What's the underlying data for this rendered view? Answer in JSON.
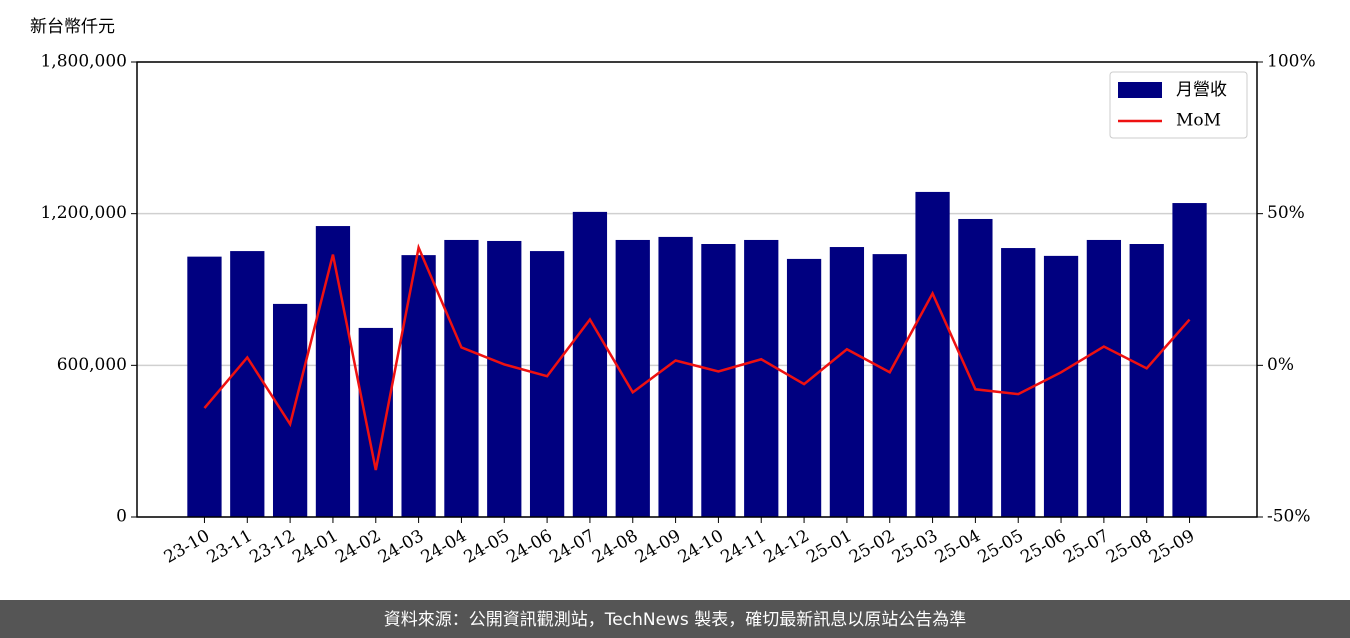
{
  "chart_data": {
    "type": "bar",
    "y_label": "新台幣仟元",
    "categories": [
      "23-10",
      "23-11",
      "23-12",
      "24-01",
      "24-02",
      "24-03",
      "24-04",
      "24-05",
      "24-06",
      "24-07",
      "24-08",
      "24-09",
      "24-10",
      "24-11",
      "24-12",
      "25-01",
      "25-02",
      "25-03",
      "25-04",
      "25-05",
      "25-06",
      "25-07",
      "25-08",
      "25-09"
    ],
    "series": [
      {
        "name": "月營收",
        "color": "#000080",
        "values": [
          1030000,
          1052000,
          843000,
          1151000,
          748000,
          1036000,
          1096000,
          1092000,
          1052000,
          1207000,
          1096000,
          1108000,
          1080000,
          1096000,
          1021000,
          1068000,
          1040000,
          1286000,
          1179000,
          1064000,
          1033000,
          1096000,
          1080000,
          1242000
        ]
      },
      {
        "name": "MoM",
        "color": "#ee1111",
        "type": "line",
        "axis": "y2",
        "values": [
          -14.1,
          2.6,
          -19.4,
          36.5,
          -34.5,
          38.8,
          5.9,
          0.3,
          -3.6,
          15.1,
          -8.9,
          1.6,
          -2.0,
          2.0,
          -6.2,
          5.3,
          -2.3,
          23.7,
          -7.9,
          -9.5,
          -2.3,
          6.2,
          -1.0,
          15.1
        ]
      }
    ],
    "ylim": [
      0,
      1800000
    ],
    "yticks": [
      0,
      {
        "value": 600000,
        "label": "600,000"
      },
      {
        "value": 1200000,
        "label": "1,200,000"
      },
      {
        "value": 1800000,
        "label": "1,800,000"
      }
    ],
    "y2lim": [
      -50,
      100
    ],
    "y2ticks": [
      {
        "value": -50,
        "label": "-50%"
      },
      {
        "value": 0,
        "label": "0%"
      },
      {
        "value": 50,
        "label": "50%"
      },
      {
        "value": 100,
        "label": "100%"
      }
    ],
    "grid": true,
    "legend": "upper right",
    "footer": "資料來源：公開資訊觀測站，TechNews 製表，確切最新訊息以原站公告為準"
  }
}
